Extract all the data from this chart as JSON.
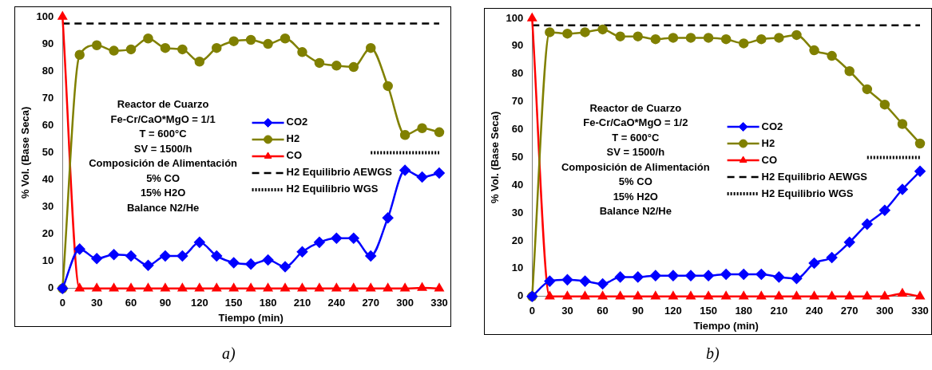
{
  "chart_data": [
    {
      "type": "line",
      "xlabel": "Tiempo (min)",
      "ylabel": "% Vol. (Base Seca)",
      "x": [
        0,
        15,
        30,
        45,
        60,
        75,
        90,
        105,
        120,
        135,
        150,
        165,
        180,
        195,
        210,
        225,
        240,
        255,
        270,
        285,
        300,
        315,
        330
      ],
      "xlim": [
        0,
        330
      ],
      "xticks": [
        0,
        30,
        60,
        90,
        120,
        150,
        180,
        210,
        240,
        270,
        300,
        330
      ],
      "ylim": [
        0,
        100
      ],
      "yticks": [
        0,
        10,
        20,
        30,
        40,
        50,
        60,
        70,
        80,
        90,
        100
      ],
      "grid": false,
      "legend": "right",
      "series": [
        {
          "name": "CO2",
          "color": "#0000ff",
          "marker": "diamond",
          "values": [
            0,
            14.5,
            11,
            12.5,
            12,
            8.5,
            12,
            12,
            17,
            12,
            9.5,
            9,
            10.5,
            8,
            13.5,
            17,
            18.5,
            18.5,
            12,
            26,
            43.5,
            41,
            42.5
          ]
        },
        {
          "name": "H2",
          "color": "#808000",
          "marker": "circle",
          "values": [
            0,
            86,
            89.5,
            87.5,
            88,
            92,
            88.5,
            88,
            83.5,
            88.5,
            91,
            91.5,
            90,
            92,
            87,
            83,
            82,
            81.5,
            88.5,
            74.5,
            56.5,
            59,
            57.5
          ]
        },
        {
          "name": "CO",
          "color": "#ff0000",
          "marker": "triangle",
          "values": [
            100,
            0,
            0,
            0,
            0,
            0,
            0,
            0,
            0,
            0,
            0,
            0,
            0,
            0,
            0,
            0,
            0,
            0,
            0,
            0,
            0,
            0.2,
            0
          ]
        },
        {
          "name": "H2 Equilibrio AEWGS",
          "color": "#000000",
          "marker": "none",
          "line_style": "dashed",
          "x": [
            0,
            330
          ],
          "values": [
            97.5,
            97.5
          ]
        },
        {
          "name": "H2 Equilibrio WGS",
          "color": "#000000",
          "marker": "none",
          "line_style": "dotted",
          "x": [
            270,
            330
          ],
          "values": [
            50,
            50
          ]
        }
      ],
      "annotations": [
        "Reactor de Cuarzo",
        "Fe-Cr/CaO*MgO = 1/1",
        "T = 600°C",
        "SV = 1500/h",
        "Composición de Alimentación",
        "5% CO",
        "15% H2O",
        "Balance N2/He",
        "a)"
      ]
    },
    {
      "type": "line",
      "xlabel": "Tiempo (min)",
      "ylabel": "% Vol. (Base Seca)",
      "x": [
        0,
        15,
        30,
        45,
        60,
        75,
        90,
        105,
        120,
        135,
        150,
        165,
        180,
        195,
        210,
        225,
        240,
        255,
        270,
        285,
        300,
        315,
        330
      ],
      "xlim": [
        0,
        330
      ],
      "xticks": [
        0,
        30,
        60,
        90,
        120,
        150,
        180,
        210,
        240,
        270,
        300,
        330
      ],
      "ylim": [
        0,
        100
      ],
      "yticks": [
        0,
        10,
        20,
        30,
        40,
        50,
        60,
        70,
        80,
        90,
        100
      ],
      "grid": false,
      "legend": "right",
      "series": [
        {
          "name": "CO2",
          "color": "#0000ff",
          "marker": "diamond",
          "values": [
            0,
            5.5,
            6,
            5.5,
            4.5,
            7,
            7,
            7.5,
            7.5,
            7.5,
            7.5,
            8,
            8,
            8,
            7,
            6.5,
            12,
            14,
            19.5,
            26,
            31,
            38.5,
            45
          ]
        },
        {
          "name": "H2",
          "color": "#808000",
          "marker": "circle",
          "values": [
            0,
            95,
            94.5,
            95,
            96,
            93.5,
            93.5,
            92.5,
            93,
            93,
            93,
            92.5,
            91,
            92.5,
            93,
            94,
            88.5,
            86.5,
            81,
            74.5,
            69,
            62,
            55
          ]
        },
        {
          "name": "CO",
          "color": "#ff0000",
          "marker": "triangle",
          "values": [
            100,
            0,
            0,
            0,
            0,
            0,
            0,
            0,
            0,
            0,
            0,
            0,
            0,
            0,
            0,
            0,
            0,
            0,
            0,
            0,
            0,
            1,
            0
          ]
        },
        {
          "name": "H2 Equilibrio AEWGS",
          "color": "#000000",
          "marker": "none",
          "line_style": "dashed",
          "x": [
            0,
            330
          ],
          "values": [
            97.5,
            97.5
          ]
        },
        {
          "name": "H2 Equilibrio WGS",
          "color": "#000000",
          "marker": "none",
          "line_style": "dotted",
          "x": [
            285,
            330
          ],
          "values": [
            50,
            50
          ]
        }
      ],
      "annotations": [
        "Reactor de Cuarzo",
        "Fe-Cr/CaO*MgO = 1/2",
        "T = 600°C",
        "SV = 1500/h",
        "Composición de Alimentación",
        "5% CO",
        "15% H2O",
        "Balance N2/He",
        "b)"
      ]
    }
  ]
}
